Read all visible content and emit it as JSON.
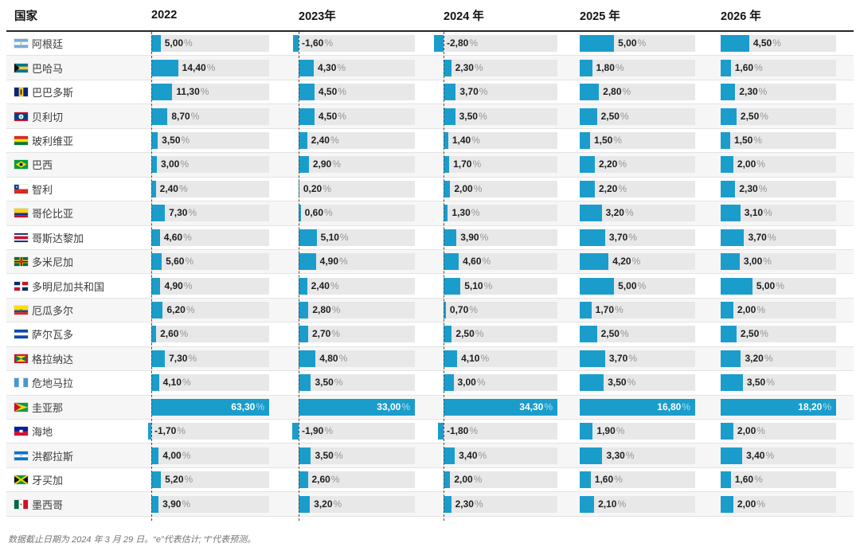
{
  "header": {
    "country_label": "国家",
    "year_labels": [
      "2022",
      "2023年",
      "2024 年",
      "2025 年",
      "2026 年"
    ]
  },
  "chart_data": {
    "type": "table",
    "description": "horizontal bar table of annual percentage values per country, bars scaled to each year-column maximum",
    "unit": "%",
    "decimal_separator": ",",
    "columns": [
      "国家",
      "2022",
      "2023年",
      "2024 年",
      "2025 年",
      "2026 年"
    ],
    "column_max": [
      63.3,
      33.0,
      34.3,
      16.8,
      18.2
    ],
    "column_min": [
      -1.7,
      -1.9,
      -2.8,
      1.5,
      1.5
    ],
    "rows": [
      {
        "country": "阿根廷",
        "flag": "argentina",
        "values": [
          5.0,
          -1.6,
          -2.8,
          5.0,
          4.5
        ],
        "labels": [
          "5,00",
          "-1,60",
          "-2,80",
          "5,00",
          "4,50"
        ]
      },
      {
        "country": "巴哈马",
        "flag": "bahamas",
        "values": [
          14.4,
          4.3,
          2.3,
          1.8,
          1.6
        ],
        "labels": [
          "14,40",
          "4,30",
          "2,30",
          "1,80",
          "1,60"
        ]
      },
      {
        "country": "巴巴多斯",
        "flag": "barbados",
        "values": [
          11.3,
          4.5,
          3.7,
          2.8,
          2.3
        ],
        "labels": [
          "11,30",
          "4,50",
          "3,70",
          "2,80",
          "2,30"
        ]
      },
      {
        "country": "贝利切",
        "flag": "belize",
        "values": [
          8.7,
          4.5,
          3.5,
          2.5,
          2.5
        ],
        "labels": [
          "8,70",
          "4,50",
          "3,50",
          "2,50",
          "2,50"
        ]
      },
      {
        "country": "玻利维亚",
        "flag": "bolivia",
        "values": [
          3.5,
          2.4,
          1.4,
          1.5,
          1.5
        ],
        "labels": [
          "3,50",
          "2,40",
          "1,40",
          "1,50",
          "1,50"
        ]
      },
      {
        "country": "巴西",
        "flag": "brazil",
        "values": [
          3.0,
          2.9,
          1.7,
          2.2,
          2.0
        ],
        "labels": [
          "3,00",
          "2,90",
          "1,70",
          "2,20",
          "2,00"
        ]
      },
      {
        "country": "智利",
        "flag": "chile",
        "values": [
          2.4,
          0.2,
          2.0,
          2.2,
          2.3
        ],
        "labels": [
          "2,40",
          "0,20",
          "2,00",
          "2,20",
          "2,30"
        ]
      },
      {
        "country": "哥伦比亚",
        "flag": "colombia",
        "values": [
          7.3,
          0.6,
          1.3,
          3.2,
          3.1
        ],
        "labels": [
          "7,30",
          "0,60",
          "1,30",
          "3,20",
          "3,10"
        ]
      },
      {
        "country": "哥斯达黎加",
        "flag": "costa-rica",
        "values": [
          4.6,
          5.1,
          3.9,
          3.7,
          3.7
        ],
        "labels": [
          "4,60",
          "5,10",
          "3,90",
          "3,70",
          "3,70"
        ]
      },
      {
        "country": "多米尼加",
        "flag": "dominica",
        "values": [
          5.6,
          4.9,
          4.6,
          4.2,
          3.0
        ],
        "labels": [
          "5,60",
          "4,90",
          "4,60",
          "4,20",
          "3,00"
        ]
      },
      {
        "country": "多明尼加共和国",
        "flag": "dominican-republic",
        "values": [
          4.9,
          2.4,
          5.1,
          5.0,
          5.0
        ],
        "labels": [
          "4,90",
          "2,40",
          "5,10",
          "5,00",
          "5,00"
        ]
      },
      {
        "country": "厄瓜多尔",
        "flag": "ecuador",
        "values": [
          6.2,
          2.8,
          0.7,
          1.7,
          2.0
        ],
        "labels": [
          "6,20",
          "2,80",
          "0,70",
          "1,70",
          "2,00"
        ]
      },
      {
        "country": "萨尔瓦多",
        "flag": "el-salvador",
        "values": [
          2.6,
          2.7,
          2.5,
          2.5,
          2.5
        ],
        "labels": [
          "2,60",
          "2,70",
          "2,50",
          "2,50",
          "2,50"
        ]
      },
      {
        "country": "格拉纳达",
        "flag": "grenada",
        "values": [
          7.3,
          4.8,
          4.1,
          3.7,
          3.2
        ],
        "labels": [
          "7,30",
          "4,80",
          "4,10",
          "3,70",
          "3,20"
        ]
      },
      {
        "country": "危地马拉",
        "flag": "guatemala",
        "values": [
          4.1,
          3.5,
          3.0,
          3.5,
          3.5
        ],
        "labels": [
          "4,10",
          "3,50",
          "3,00",
          "3,50",
          "3,50"
        ]
      },
      {
        "country": "圭亚那",
        "flag": "guyana",
        "values": [
          63.3,
          33.0,
          34.3,
          16.8,
          18.2
        ],
        "labels": [
          "63,30",
          "33,00",
          "34,30",
          "16,80",
          "18,20"
        ]
      },
      {
        "country": "海地",
        "flag": "haiti",
        "values": [
          -1.7,
          -1.9,
          -1.8,
          1.9,
          2.0
        ],
        "labels": [
          "-1,70",
          "-1,90",
          "-1,80",
          "1,90",
          "2,00"
        ]
      },
      {
        "country": "洪都拉斯",
        "flag": "honduras",
        "values": [
          4.0,
          3.5,
          3.4,
          3.3,
          3.4
        ],
        "labels": [
          "4,00",
          "3,50",
          "3,40",
          "3,30",
          "3,40"
        ]
      },
      {
        "country": "牙买加",
        "flag": "jamaica",
        "values": [
          5.2,
          2.6,
          2.0,
          1.6,
          1.6
        ],
        "labels": [
          "5,20",
          "2,60",
          "2,00",
          "1,60",
          "1,60"
        ]
      },
      {
        "country": "墨西哥",
        "flag": "mexico",
        "values": [
          3.9,
          3.2,
          2.3,
          2.1,
          2.0
        ],
        "labels": [
          "3,90",
          "3,20",
          "2,30",
          "2,10",
          "2,00"
        ]
      }
    ]
  },
  "pct_suffix": "%",
  "footnote": "数据截止日期为 2024 年 3 月 29 日。“e”代表估计; “f”代表预测。",
  "colors": {
    "bar": "#1B9DCB",
    "track": "#E8E8E8",
    "zebra_row": "#F6F6F6",
    "header_rule": "#262626",
    "row_rule": "#E3E3E3",
    "zero_line": "#4B4B4B",
    "value_text": "#1D1D1D",
    "percent_text": "#949494",
    "footnote_text": "#757575"
  }
}
